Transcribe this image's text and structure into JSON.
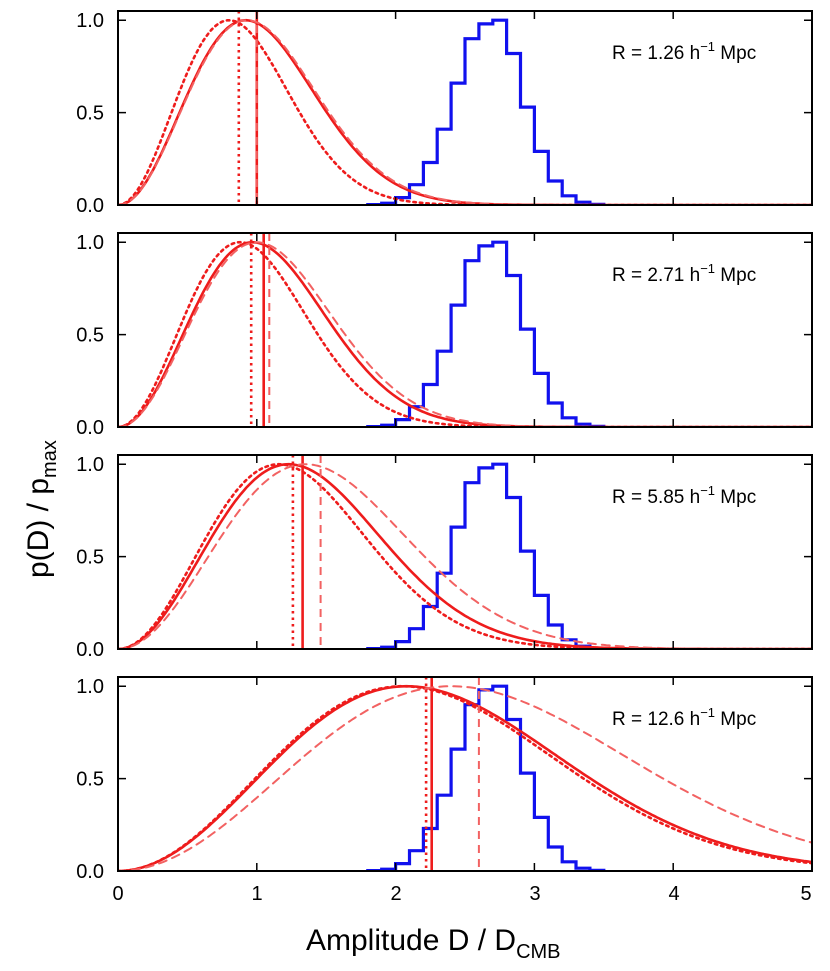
{
  "chart_data": {
    "type": "line",
    "x_axis": {
      "label_main": "Amplitude  D / D",
      "label_sub": "CMB",
      "range": [
        0,
        5
      ],
      "ticks": [
        0,
        1,
        2,
        3,
        4,
        5
      ],
      "tick_labels": [
        "0",
        "1",
        "2",
        "3",
        "4",
        "5"
      ]
    },
    "y_axis": {
      "label_main": "p(D) / p",
      "label_sub": "max",
      "range": [
        0,
        1.05
      ],
      "ticks": [
        0,
        0.5,
        1.0
      ],
      "tick_labels": [
        "0.0",
        "0.5",
        "1.0"
      ]
    },
    "colors": {
      "solid": "#ee1c1c",
      "dotted": "#ee1c1c",
      "dashed": "#f26262",
      "histogram": "#1111ee"
    },
    "histogram": {
      "name": "simulation histogram",
      "bin_edges": [
        1.8,
        1.9,
        2.0,
        2.1,
        2.2,
        2.3,
        2.4,
        2.5,
        2.6,
        2.7,
        2.8,
        2.9,
        3.0,
        3.1,
        3.2,
        3.3,
        3.4,
        3.5
      ],
      "values": [
        0.002,
        0.01,
        0.04,
        0.11,
        0.23,
        0.41,
        0.66,
        0.9,
        0.98,
        1.0,
        0.82,
        0.53,
        0.29,
        0.13,
        0.05,
        0.015,
        0.004
      ]
    },
    "panels": [
      {
        "label_pre": "R = 1.26 h",
        "label_sup": "−1",
        "label_post": " Mpc",
        "series": [
          {
            "name": "solid",
            "peak": 0.92,
            "median": 1.0
          },
          {
            "name": "dotted",
            "peak": 0.8,
            "median": 0.87
          },
          {
            "name": "dashed",
            "peak": 0.93,
            "median": 1.0
          }
        ]
      },
      {
        "label_pre": "R = 2.71 h",
        "label_sup": "−1",
        "label_post": " Mpc",
        "series": [
          {
            "name": "solid",
            "peak": 0.97,
            "median": 1.05
          },
          {
            "name": "dotted",
            "peak": 0.88,
            "median": 0.96
          },
          {
            "name": "dashed",
            "peak": 1.0,
            "median": 1.09
          }
        ]
      },
      {
        "label_pre": "R = 5.85 h",
        "label_sup": "−1",
        "label_post": " Mpc",
        "series": [
          {
            "name": "solid",
            "peak": 1.23,
            "median": 1.33
          },
          {
            "name": "dotted",
            "peak": 1.16,
            "median": 1.26
          },
          {
            "name": "dashed",
            "peak": 1.35,
            "median": 1.46
          }
        ]
      },
      {
        "label_pre": "R = 12.6 h",
        "label_sup": "−1",
        "label_post": " Mpc",
        "series": [
          {
            "name": "solid",
            "peak": 2.08,
            "median": 2.26
          },
          {
            "name": "dotted",
            "peak": 2.05,
            "median": 2.22
          },
          {
            "name": "dashed",
            "peak": 2.4,
            "median": 2.6
          }
        ]
      }
    ]
  }
}
